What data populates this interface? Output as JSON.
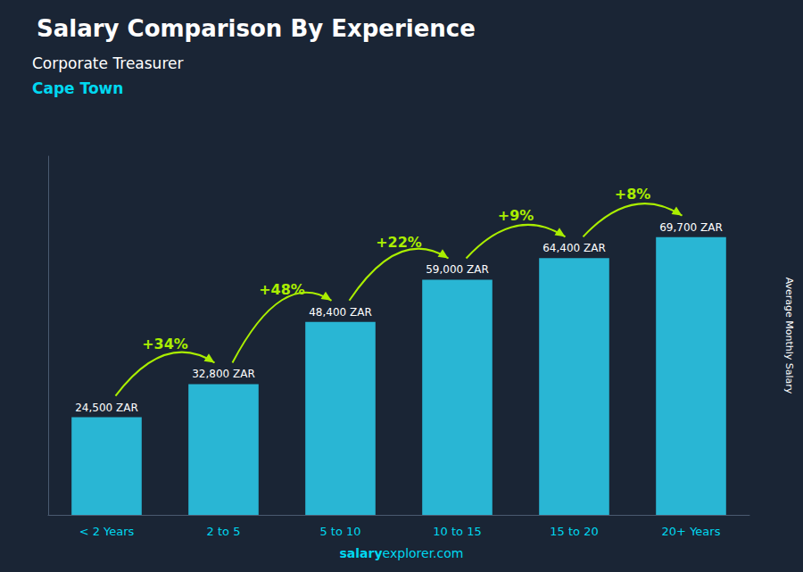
{
  "chart_data": {
    "type": "bar",
    "title": "Salary Comparison By Experience",
    "subtitle": [
      "Corporate Treasurer",
      "Cape Town"
    ],
    "ylabel": "Average Monthly Salary",
    "categories": [
      "< 2 Years",
      "2 to 5",
      "5 to 10",
      "10 to 15",
      "15 to 20",
      "20+ Years"
    ],
    "values": [
      24500,
      32800,
      48400,
      59000,
      64400,
      69700
    ],
    "value_labels": [
      "24,500 ZAR",
      "32,800 ZAR",
      "48,400 ZAR",
      "59,000 ZAR",
      "64,400 ZAR",
      "69,700 ZAR"
    ],
    "data_labels": true,
    "color": "#29b6d4",
    "ylim": [
      0,
      90000
    ],
    "yticks": [],
    "tick_labels": "x",
    "grid": false,
    "annotations": [
      {
        "text": "+34%",
        "from": "< 2 Years",
        "to": "2 to 5"
      },
      {
        "text": "+48%",
        "from": "2 to 5",
        "to": "5 to 10"
      },
      {
        "text": "+22%",
        "from": "5 to 10",
        "to": "10 to 15"
      },
      {
        "text": "+9%",
        "from": "10 to 15",
        "to": "15 to 20"
      },
      {
        "text": "+8%",
        "from": "15 to 20",
        "to": "20+ Years"
      }
    ],
    "footer": [
      "salary",
      "explorer.com"
    ]
  }
}
